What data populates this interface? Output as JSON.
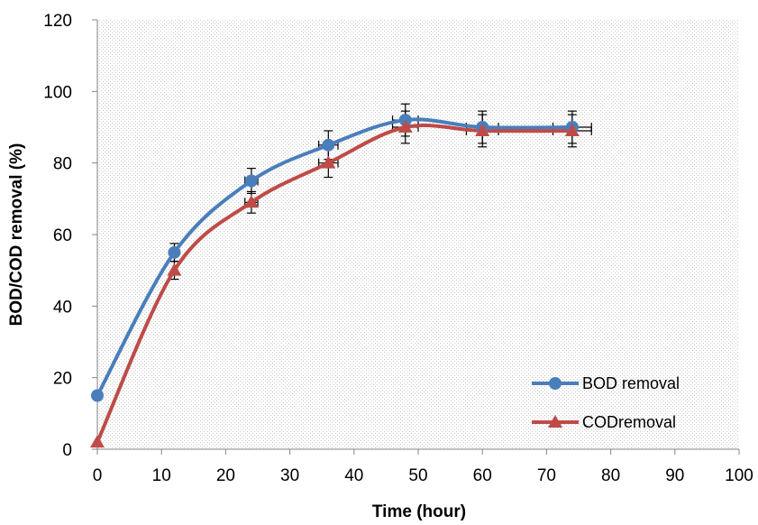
{
  "chart_data": {
    "type": "line",
    "title": "",
    "xlabel": "Time (hour)",
    "ylabel": "BOD/COD removal (%)",
    "xlim": [
      0,
      100
    ],
    "ylim": [
      0,
      120
    ],
    "x_ticks": [
      "0",
      "10",
      "20",
      "30",
      "40",
      "50",
      "60",
      "70",
      "80",
      "90",
      "100"
    ],
    "y_ticks": [
      "0",
      "20",
      "40",
      "60",
      "80",
      "100",
      "120"
    ],
    "grid": false,
    "plot_background": "dotted",
    "legend_position": "bottom-right",
    "series": [
      {
        "name": "BOD removal",
        "color": "#4a7ebb",
        "marker": "circle",
        "x": [
          0,
          12,
          24,
          36,
          48,
          60,
          74
        ],
        "y": [
          15,
          55,
          75,
          85,
          92,
          90,
          90
        ],
        "y_error": [
          0,
          2.5,
          3.5,
          4,
          4.5,
          4.5,
          4.5
        ],
        "x_error": [
          0,
          0,
          1,
          1.5,
          2,
          2.5,
          3
        ]
      },
      {
        "name": "CODremoval",
        "color": "#be4b48",
        "marker": "triangle",
        "x": [
          0,
          12,
          24,
          36,
          48,
          60,
          74
        ],
        "y": [
          2,
          50,
          69,
          80,
          90,
          89,
          89
        ],
        "y_error": [
          0,
          2.5,
          3,
          4,
          4.5,
          4.5,
          4.5
        ],
        "x_error": [
          0,
          0,
          1,
          1.5,
          2,
          2.5,
          3
        ]
      }
    ]
  }
}
